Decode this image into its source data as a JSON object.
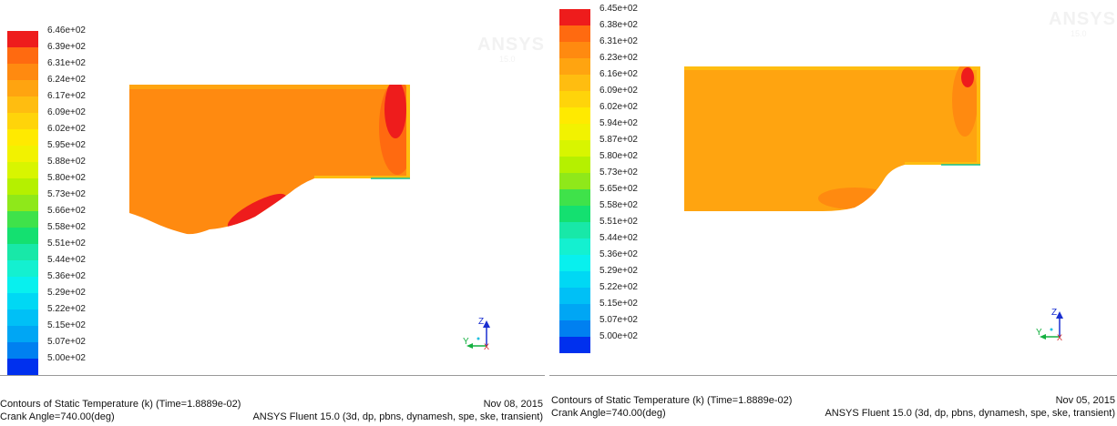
{
  "panels": [
    {
      "colorbar": {
        "labels": [
          "6.46e+02",
          "6.39e+02",
          "6.31e+02",
          "6.24e+02",
          "6.17e+02",
          "6.09e+02",
          "6.02e+02",
          "5.95e+02",
          "5.88e+02",
          "5.80e+02",
          "5.73e+02",
          "5.66e+02",
          "5.58e+02",
          "5.51e+02",
          "5.44e+02",
          "5.36e+02",
          "5.29e+02",
          "5.22e+02",
          "5.15e+02",
          "5.07e+02",
          "5.00e+02"
        ],
        "colors": [
          "#ee1c1c",
          "#ff6a10",
          "#ff8a10",
          "#ffa410",
          "#ffbd10",
          "#ffd40a",
          "#ffea00",
          "#f2f200",
          "#d8f500",
          "#b5f000",
          "#8fe81a",
          "#3fe24a",
          "#14e070",
          "#18e8a8",
          "#14f0d0",
          "#08f0ee",
          "#00d8f4",
          "#00c0f6",
          "#00a6f4",
          "#0080f0",
          "#0030ee"
        ]
      },
      "watermark": {
        "brand": "ANSYS",
        "version": "15.0"
      },
      "axes": {
        "z": "Z",
        "y": "Y",
        "x": "X"
      },
      "footer": {
        "title": "Contours of Static Temperature (k)  (Time=1.8889e-02)",
        "date": "Nov 08, 2015",
        "crank": "Crank Angle=740.00(deg)",
        "software": "ANSYS Fluent 15.0 (3d, dp, pbns, dynamesh, spe, ske, transient)"
      }
    },
    {
      "colorbar": {
        "labels": [
          "6.45e+02",
          "6.38e+02",
          "6.31e+02",
          "6.23e+02",
          "6.16e+02",
          "6.09e+02",
          "6.02e+02",
          "5.94e+02",
          "5.87e+02",
          "5.80e+02",
          "5.73e+02",
          "5.65e+02",
          "5.58e+02",
          "5.51e+02",
          "5.44e+02",
          "5.36e+02",
          "5.29e+02",
          "5.22e+02",
          "5.15e+02",
          "5.07e+02",
          "5.00e+02"
        ],
        "colors": [
          "#ee1c1c",
          "#ff6a10",
          "#ff8a10",
          "#ffa410",
          "#ffbd10",
          "#ffd40a",
          "#ffea00",
          "#f2f200",
          "#d8f500",
          "#b5f000",
          "#8fe81a",
          "#3fe24a",
          "#14e070",
          "#18e8a8",
          "#14f0d0",
          "#08f0ee",
          "#00d8f4",
          "#00c0f6",
          "#00a6f4",
          "#0080f0",
          "#0030ee"
        ]
      },
      "watermark": {
        "brand": "ANSYS",
        "version": "15.0"
      },
      "axes": {
        "z": "Z",
        "y": "Y",
        "x": "X"
      },
      "footer": {
        "title": "Contours of Static Temperature (k)  (Time=1.8889e-02)",
        "date": "Nov 05, 2015",
        "crank": "Crank Angle=740.00(deg)",
        "software": "ANSYS Fluent 15.0 (3d, dp, pbns, dynamesh, spe, ske, transient)"
      }
    }
  ]
}
